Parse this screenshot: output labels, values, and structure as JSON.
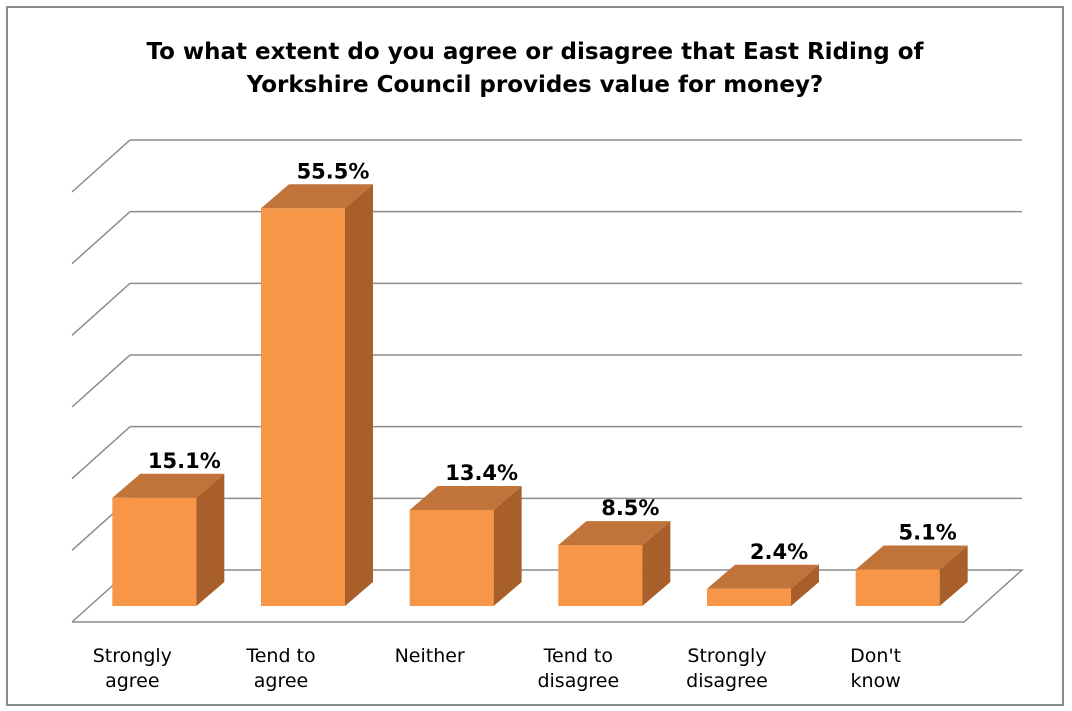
{
  "chart_data": {
    "type": "bar",
    "title": "To what extent do you agree or disagree that East Riding of\nYorkshire Council provides value for money?",
    "categories": [
      "Strongly\nagree",
      "Tend to\nagree",
      "Neither",
      "Tend to\ndisagree",
      "Strongly\ndisagree",
      "Don't\nknow"
    ],
    "values": [
      15.1,
      55.5,
      13.4,
      8.5,
      2.4,
      5.1
    ],
    "data_labels": [
      "15.1%",
      "55.5%",
      "13.4%",
      "8.5%",
      "2.4%",
      "5.1%"
    ],
    "ylim": [
      0,
      60
    ],
    "grid": true,
    "bar_color": "#f79646",
    "bar_top_color": "#c0743a",
    "bar_side_color": "#a85f2a",
    "gridline_color": "#8c8c8c"
  }
}
